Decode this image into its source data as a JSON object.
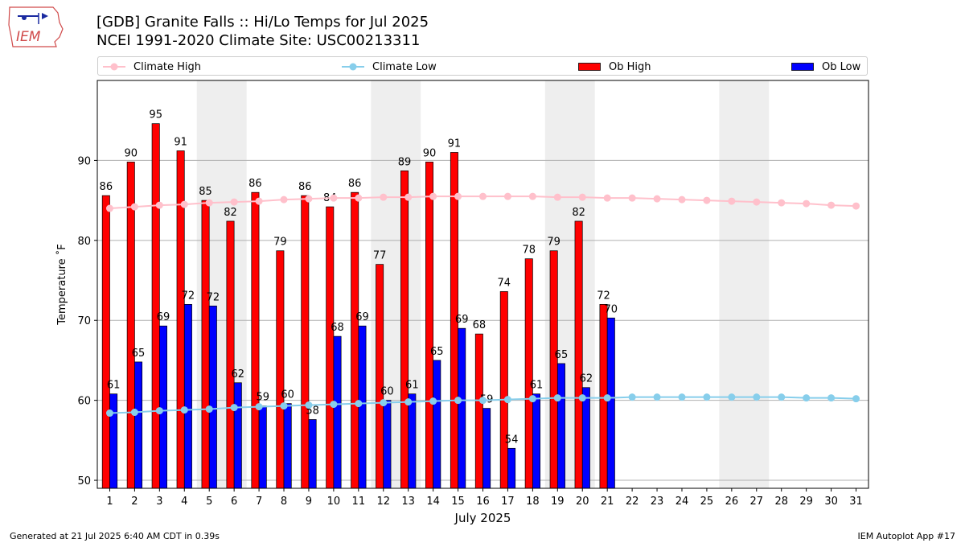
{
  "header": {
    "title_line1": "[GDB] Granite Falls :: Hi/Lo Temps for Jul 2025",
    "title_line2": "NCEI 1991-2020 Climate Site: USC00213311",
    "logo_text": "IEM"
  },
  "legend": {
    "climate_high": "Climate High",
    "climate_low": "Climate Low",
    "ob_high": "Ob High",
    "ob_low": "Ob Low"
  },
  "footer": {
    "left": "Generated at 21 Jul 2025 6:40 AM CDT in 0.39s",
    "right": "IEM Autoplot App #17"
  },
  "colors": {
    "ob_high": "#ff0000",
    "ob_low": "#0000ff",
    "climate_high": "#ffc0cb",
    "climate_low": "#87ceeb",
    "weekend_shade": "#eeeeee",
    "grid": "#b0b0b0"
  },
  "chart_data": {
    "type": "bar",
    "xlabel": "July 2025",
    "ylabel": "Temperature ˚F",
    "ylim": [
      49,
      100
    ],
    "yticks": [
      50,
      60,
      70,
      80,
      90
    ],
    "grid": "horizontal",
    "legend_position": "top",
    "days": [
      1,
      2,
      3,
      4,
      5,
      6,
      7,
      8,
      9,
      10,
      11,
      12,
      13,
      14,
      15,
      16,
      17,
      18,
      19,
      20,
      21,
      22,
      23,
      24,
      25,
      26,
      27,
      28,
      29,
      30,
      31
    ],
    "weekend_shading": [
      [
        5,
        6
      ],
      [
        12,
        13
      ],
      [
        19,
        20
      ],
      [
        26,
        27
      ]
    ],
    "series": [
      {
        "name": "Ob High",
        "kind": "bar",
        "values": [
          85.6,
          89.8,
          94.6,
          91.2,
          85.0,
          82.4,
          86.0,
          78.7,
          85.6,
          84.2,
          86.0,
          77.0,
          88.7,
          89.8,
          91.0,
          68.3,
          73.6,
          77.7,
          78.7,
          82.4,
          72.0
        ]
      },
      {
        "name": "Ob Low",
        "kind": "bar",
        "values": [
          60.8,
          64.8,
          69.3,
          72.0,
          71.8,
          62.2,
          59.3,
          59.6,
          57.6,
          68.0,
          69.3,
          60.0,
          60.8,
          65.0,
          69.0,
          59.0,
          54.0,
          60.8,
          64.6,
          61.6,
          70.3
        ]
      },
      {
        "name": "Climate High",
        "kind": "line",
        "values": [
          84.0,
          84.2,
          84.4,
          84.5,
          84.7,
          84.8,
          84.9,
          85.1,
          85.2,
          85.3,
          85.3,
          85.4,
          85.4,
          85.5,
          85.5,
          85.5,
          85.5,
          85.5,
          85.4,
          85.4,
          85.3,
          85.3,
          85.2,
          85.1,
          85.0,
          84.9,
          84.8,
          84.7,
          84.6,
          84.4,
          84.3
        ]
      },
      {
        "name": "Climate Low",
        "kind": "line",
        "values": [
          58.4,
          58.5,
          58.7,
          58.8,
          58.9,
          59.1,
          59.2,
          59.3,
          59.4,
          59.5,
          59.6,
          59.7,
          59.8,
          59.9,
          60.0,
          60.0,
          60.1,
          60.2,
          60.3,
          60.3,
          60.3,
          60.4,
          60.4,
          60.4,
          60.4,
          60.4,
          60.4,
          60.4,
          60.3,
          60.3,
          60.2
        ]
      }
    ],
    "high_labels": [
      "86",
      "90",
      "95",
      "91",
      "85",
      "82",
      "86",
      "79",
      "86",
      "84",
      "86",
      "77",
      "89",
      "90",
      "91",
      "68",
      "74",
      "78",
      "79",
      "82",
      "72"
    ],
    "low_labels": [
      "61",
      "65",
      "69",
      "72",
      "72",
      "62",
      "59",
      "60",
      "58",
      "68",
      "69",
      "60",
      "61",
      "65",
      "69",
      "59",
      "54",
      "61",
      "65",
      "62",
      "70"
    ]
  }
}
